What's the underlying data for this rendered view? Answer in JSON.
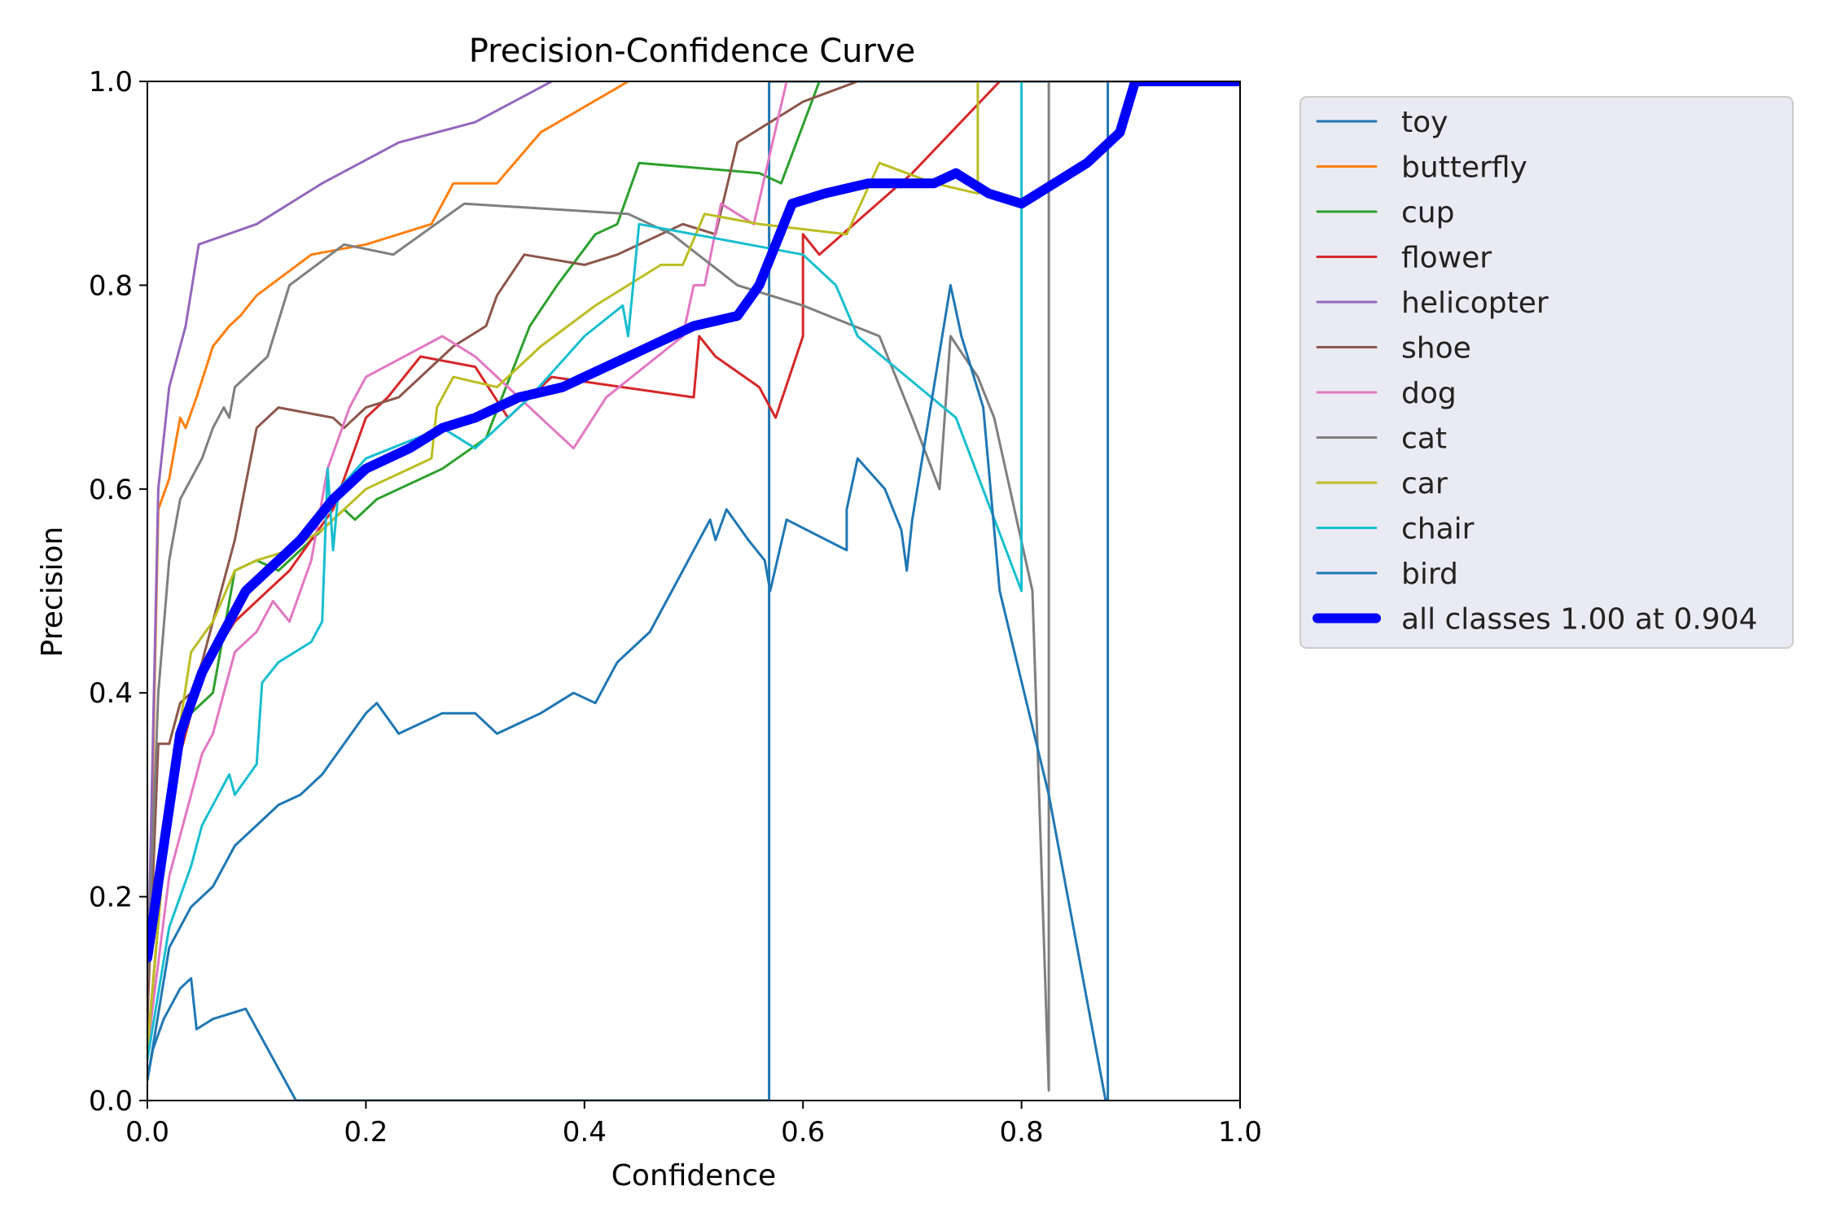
{
  "chart_data": {
    "type": "line",
    "title": "Precision-Confidence Curve",
    "xlabel": "Confidence",
    "ylabel": "Precision",
    "xlim": [
      0,
      1
    ],
    "ylim": [
      0,
      1
    ],
    "xticks": [
      "0.0",
      "0.2",
      "0.4",
      "0.6",
      "0.8",
      "1.0"
    ],
    "yticks": [
      "0.0",
      "0.2",
      "0.4",
      "0.6",
      "0.8",
      "1.0"
    ],
    "grid": false,
    "legend_position": "outside-right",
    "series": [
      {
        "name": "toy",
        "color": "#1f77b4",
        "width": 1.5,
        "points": [
          [
            0,
            0.02
          ],
          [
            0.005,
            0.05
          ],
          [
            0.015,
            0.08
          ],
          [
            0.025,
            0.1
          ],
          [
            0.03,
            0.11
          ],
          [
            0.04,
            0.12
          ],
          [
            0.045,
            0.07
          ],
          [
            0.06,
            0.08
          ],
          [
            0.09,
            0.09
          ],
          [
            0.136,
            0.0
          ],
          [
            0.569,
            0.0
          ],
          [
            0.569,
            1.0
          ],
          [
            0.879,
            1.0
          ],
          [
            0.879,
            0.0
          ],
          [
            0.879,
            1.0
          ],
          [
            1.0,
            1.0
          ]
        ]
      },
      {
        "name": "butterfly",
        "color": "#ff7f0e",
        "width": 1.5,
        "points": [
          [
            0,
            0.07
          ],
          [
            0.01,
            0.58
          ],
          [
            0.02,
            0.61
          ],
          [
            0.03,
            0.67
          ],
          [
            0.035,
            0.66
          ],
          [
            0.045,
            0.69
          ],
          [
            0.06,
            0.74
          ],
          [
            0.075,
            0.76
          ],
          [
            0.085,
            0.77
          ],
          [
            0.1,
            0.79
          ],
          [
            0.15,
            0.83
          ],
          [
            0.2,
            0.84
          ],
          [
            0.26,
            0.86
          ],
          [
            0.28,
            0.9
          ],
          [
            0.32,
            0.9
          ],
          [
            0.36,
            0.95
          ],
          [
            0.44,
            1.0
          ]
        ]
      },
      {
        "name": "cup",
        "color": "#2ca02c",
        "width": 1.5,
        "points": [
          [
            0,
            0.05
          ],
          [
            0.02,
            0.3
          ],
          [
            0.04,
            0.38
          ],
          [
            0.06,
            0.4
          ],
          [
            0.08,
            0.52
          ],
          [
            0.1,
            0.53
          ],
          [
            0.12,
            0.52
          ],
          [
            0.15,
            0.55
          ],
          [
            0.18,
            0.58
          ],
          [
            0.19,
            0.57
          ],
          [
            0.21,
            0.59
          ],
          [
            0.27,
            0.62
          ],
          [
            0.31,
            0.65
          ],
          [
            0.35,
            0.76
          ],
          [
            0.375,
            0.8
          ],
          [
            0.41,
            0.85
          ],
          [
            0.43,
            0.86
          ],
          [
            0.45,
            0.92
          ],
          [
            0.56,
            0.91
          ],
          [
            0.58,
            0.9
          ],
          [
            0.615,
            1.0
          ]
        ]
      },
      {
        "name": "flower",
        "color": "#d62728",
        "width": 1.5,
        "points": [
          [
            0,
            0.05
          ],
          [
            0.02,
            0.3
          ],
          [
            0.05,
            0.42
          ],
          [
            0.08,
            0.47
          ],
          [
            0.11,
            0.5
          ],
          [
            0.13,
            0.52
          ],
          [
            0.15,
            0.55
          ],
          [
            0.17,
            0.58
          ],
          [
            0.18,
            0.61
          ],
          [
            0.2,
            0.67
          ],
          [
            0.22,
            0.69
          ],
          [
            0.25,
            0.73
          ],
          [
            0.3,
            0.72
          ],
          [
            0.33,
            0.67
          ],
          [
            0.37,
            0.71
          ],
          [
            0.5,
            0.69
          ],
          [
            0.505,
            0.75
          ],
          [
            0.52,
            0.73
          ],
          [
            0.56,
            0.7
          ],
          [
            0.575,
            0.67
          ],
          [
            0.6,
            0.75
          ],
          [
            0.6,
            0.85
          ],
          [
            0.615,
            0.83
          ],
          [
            0.7,
            0.91
          ],
          [
            0.78,
            1.0
          ]
        ]
      },
      {
        "name": "helicopter",
        "color": "#9467bd",
        "width": 1.5,
        "points": [
          [
            0,
            0.1
          ],
          [
            0.01,
            0.6
          ],
          [
            0.02,
            0.7
          ],
          [
            0.03,
            0.74
          ],
          [
            0.035,
            0.76
          ],
          [
            0.047,
            0.84
          ],
          [
            0.1,
            0.86
          ],
          [
            0.16,
            0.9
          ],
          [
            0.23,
            0.94
          ],
          [
            0.3,
            0.96
          ],
          [
            0.37,
            1.0
          ]
        ]
      },
      {
        "name": "shoe",
        "color": "#8c564b",
        "width": 1.5,
        "points": [
          [
            0,
            0.08
          ],
          [
            0.01,
            0.35
          ],
          [
            0.02,
            0.35
          ],
          [
            0.03,
            0.39
          ],
          [
            0.04,
            0.4
          ],
          [
            0.05,
            0.43
          ],
          [
            0.065,
            0.49
          ],
          [
            0.08,
            0.55
          ],
          [
            0.1,
            0.66
          ],
          [
            0.12,
            0.68
          ],
          [
            0.17,
            0.67
          ],
          [
            0.18,
            0.66
          ],
          [
            0.2,
            0.68
          ],
          [
            0.23,
            0.69
          ],
          [
            0.25,
            0.71
          ],
          [
            0.28,
            0.74
          ],
          [
            0.31,
            0.76
          ],
          [
            0.32,
            0.79
          ],
          [
            0.345,
            0.83
          ],
          [
            0.4,
            0.82
          ],
          [
            0.43,
            0.83
          ],
          [
            0.49,
            0.86
          ],
          [
            0.52,
            0.85
          ],
          [
            0.54,
            0.94
          ],
          [
            0.6,
            0.98
          ],
          [
            0.65,
            1.0
          ]
        ]
      },
      {
        "name": "dog",
        "color": "#e377c2",
        "width": 1.5,
        "points": [
          [
            0,
            0.05
          ],
          [
            0.02,
            0.22
          ],
          [
            0.04,
            0.3
          ],
          [
            0.05,
            0.34
          ],
          [
            0.06,
            0.36
          ],
          [
            0.07,
            0.4
          ],
          [
            0.08,
            0.44
          ],
          [
            0.1,
            0.46
          ],
          [
            0.115,
            0.49
          ],
          [
            0.13,
            0.47
          ],
          [
            0.15,
            0.53
          ],
          [
            0.165,
            0.62
          ],
          [
            0.185,
            0.68
          ],
          [
            0.2,
            0.71
          ],
          [
            0.27,
            0.75
          ],
          [
            0.3,
            0.73
          ],
          [
            0.33,
            0.7
          ],
          [
            0.36,
            0.67
          ],
          [
            0.39,
            0.64
          ],
          [
            0.42,
            0.69
          ],
          [
            0.49,
            0.75
          ],
          [
            0.5,
            0.8
          ],
          [
            0.51,
            0.8
          ],
          [
            0.525,
            0.88
          ],
          [
            0.555,
            0.86
          ],
          [
            0.585,
            1.0
          ]
        ]
      },
      {
        "name": "cat",
        "color": "#7f7f7f",
        "width": 1.5,
        "points": [
          [
            0,
            0.12
          ],
          [
            0.01,
            0.4
          ],
          [
            0.02,
            0.53
          ],
          [
            0.03,
            0.59
          ],
          [
            0.05,
            0.63
          ],
          [
            0.06,
            0.66
          ],
          [
            0.07,
            0.68
          ],
          [
            0.075,
            0.67
          ],
          [
            0.08,
            0.7
          ],
          [
            0.11,
            0.73
          ],
          [
            0.13,
            0.8
          ],
          [
            0.18,
            0.84
          ],
          [
            0.225,
            0.83
          ],
          [
            0.29,
            0.88
          ],
          [
            0.44,
            0.87
          ],
          [
            0.48,
            0.85
          ],
          [
            0.54,
            0.8
          ],
          [
            0.6,
            0.78
          ],
          [
            0.67,
            0.75
          ],
          [
            0.7,
            0.67
          ],
          [
            0.725,
            0.6
          ],
          [
            0.735,
            0.75
          ],
          [
            0.76,
            0.71
          ],
          [
            0.775,
            0.67
          ],
          [
            0.81,
            0.5
          ],
          [
            0.825,
            0.01
          ],
          [
            0.825,
            1.0
          ],
          [
            1.0,
            1.0
          ]
        ]
      },
      {
        "name": "car",
        "color": "#bcbd22",
        "width": 1.5,
        "points": [
          [
            0,
            0.05
          ],
          [
            0.02,
            0.3
          ],
          [
            0.04,
            0.44
          ],
          [
            0.06,
            0.47
          ],
          [
            0.08,
            0.52
          ],
          [
            0.1,
            0.53
          ],
          [
            0.13,
            0.54
          ],
          [
            0.16,
            0.56
          ],
          [
            0.2,
            0.6
          ],
          [
            0.26,
            0.63
          ],
          [
            0.265,
            0.68
          ],
          [
            0.28,
            0.71
          ],
          [
            0.32,
            0.7
          ],
          [
            0.36,
            0.74
          ],
          [
            0.41,
            0.78
          ],
          [
            0.47,
            0.82
          ],
          [
            0.49,
            0.82
          ],
          [
            0.51,
            0.87
          ],
          [
            0.56,
            0.86
          ],
          [
            0.64,
            0.85
          ],
          [
            0.67,
            0.92
          ],
          [
            0.72,
            0.9
          ],
          [
            0.76,
            0.89
          ],
          [
            0.76,
            1.0
          ]
        ]
      },
      {
        "name": "chair",
        "color": "#17becf",
        "width": 1.5,
        "points": [
          [
            0,
            0.04
          ],
          [
            0.02,
            0.17
          ],
          [
            0.04,
            0.23
          ],
          [
            0.05,
            0.27
          ],
          [
            0.06,
            0.29
          ],
          [
            0.075,
            0.32
          ],
          [
            0.08,
            0.3
          ],
          [
            0.1,
            0.33
          ],
          [
            0.105,
            0.41
          ],
          [
            0.12,
            0.43
          ],
          [
            0.15,
            0.45
          ],
          [
            0.16,
            0.47
          ],
          [
            0.165,
            0.62
          ],
          [
            0.17,
            0.54
          ],
          [
            0.175,
            0.6
          ],
          [
            0.2,
            0.63
          ],
          [
            0.27,
            0.66
          ],
          [
            0.3,
            0.64
          ],
          [
            0.35,
            0.69
          ],
          [
            0.4,
            0.75
          ],
          [
            0.435,
            0.78
          ],
          [
            0.44,
            0.75
          ],
          [
            0.45,
            0.86
          ],
          [
            0.55,
            0.84
          ],
          [
            0.6,
            0.83
          ],
          [
            0.63,
            0.8
          ],
          [
            0.65,
            0.75
          ],
          [
            0.74,
            0.67
          ],
          [
            0.8,
            0.5
          ],
          [
            0.8,
            1.0
          ]
        ]
      },
      {
        "name": "bird",
        "color": "#1f77b4",
        "width": 1.5,
        "points": [
          [
            0,
            0.02
          ],
          [
            0.02,
            0.15
          ],
          [
            0.04,
            0.19
          ],
          [
            0.06,
            0.21
          ],
          [
            0.08,
            0.25
          ],
          [
            0.1,
            0.27
          ],
          [
            0.12,
            0.29
          ],
          [
            0.14,
            0.3
          ],
          [
            0.16,
            0.32
          ],
          [
            0.18,
            0.35
          ],
          [
            0.2,
            0.38
          ],
          [
            0.21,
            0.39
          ],
          [
            0.23,
            0.36
          ],
          [
            0.27,
            0.38
          ],
          [
            0.3,
            0.38
          ],
          [
            0.32,
            0.36
          ],
          [
            0.36,
            0.38
          ],
          [
            0.39,
            0.4
          ],
          [
            0.41,
            0.39
          ],
          [
            0.43,
            0.43
          ],
          [
            0.46,
            0.46
          ],
          [
            0.47,
            0.48
          ],
          [
            0.48,
            0.5
          ],
          [
            0.5,
            0.54
          ],
          [
            0.515,
            0.57
          ],
          [
            0.52,
            0.55
          ],
          [
            0.53,
            0.58
          ],
          [
            0.55,
            0.55
          ],
          [
            0.565,
            0.53
          ],
          [
            0.57,
            0.5
          ],
          [
            0.585,
            0.57
          ],
          [
            0.64,
            0.54
          ],
          [
            0.64,
            0.58
          ],
          [
            0.65,
            0.63
          ],
          [
            0.675,
            0.6
          ],
          [
            0.69,
            0.56
          ],
          [
            0.695,
            0.52
          ],
          [
            0.7,
            0.57
          ],
          [
            0.735,
            0.8
          ],
          [
            0.745,
            0.75
          ],
          [
            0.765,
            0.68
          ],
          [
            0.78,
            0.5
          ],
          [
            0.825,
            0.3
          ],
          [
            0.877,
            0.0
          ]
        ]
      },
      {
        "name": "all classes 1.00 at 0.904",
        "color": "#0000ff",
        "width": 6,
        "points": [
          [
            0,
            0.14
          ],
          [
            0.015,
            0.25
          ],
          [
            0.03,
            0.36
          ],
          [
            0.05,
            0.42
          ],
          [
            0.07,
            0.46
          ],
          [
            0.09,
            0.5
          ],
          [
            0.11,
            0.52
          ],
          [
            0.14,
            0.55
          ],
          [
            0.17,
            0.59
          ],
          [
            0.2,
            0.62
          ],
          [
            0.24,
            0.64
          ],
          [
            0.27,
            0.66
          ],
          [
            0.3,
            0.67
          ],
          [
            0.34,
            0.69
          ],
          [
            0.38,
            0.7
          ],
          [
            0.42,
            0.72
          ],
          [
            0.46,
            0.74
          ],
          [
            0.5,
            0.76
          ],
          [
            0.54,
            0.77
          ],
          [
            0.56,
            0.8
          ],
          [
            0.59,
            0.88
          ],
          [
            0.62,
            0.89
          ],
          [
            0.66,
            0.9
          ],
          [
            0.7,
            0.9
          ],
          [
            0.72,
            0.9
          ],
          [
            0.74,
            0.91
          ],
          [
            0.77,
            0.89
          ],
          [
            0.8,
            0.88
          ],
          [
            0.83,
            0.9
          ],
          [
            0.86,
            0.92
          ],
          [
            0.89,
            0.95
          ],
          [
            0.904,
            1.0
          ],
          [
            1.0,
            1.0
          ]
        ]
      }
    ]
  }
}
